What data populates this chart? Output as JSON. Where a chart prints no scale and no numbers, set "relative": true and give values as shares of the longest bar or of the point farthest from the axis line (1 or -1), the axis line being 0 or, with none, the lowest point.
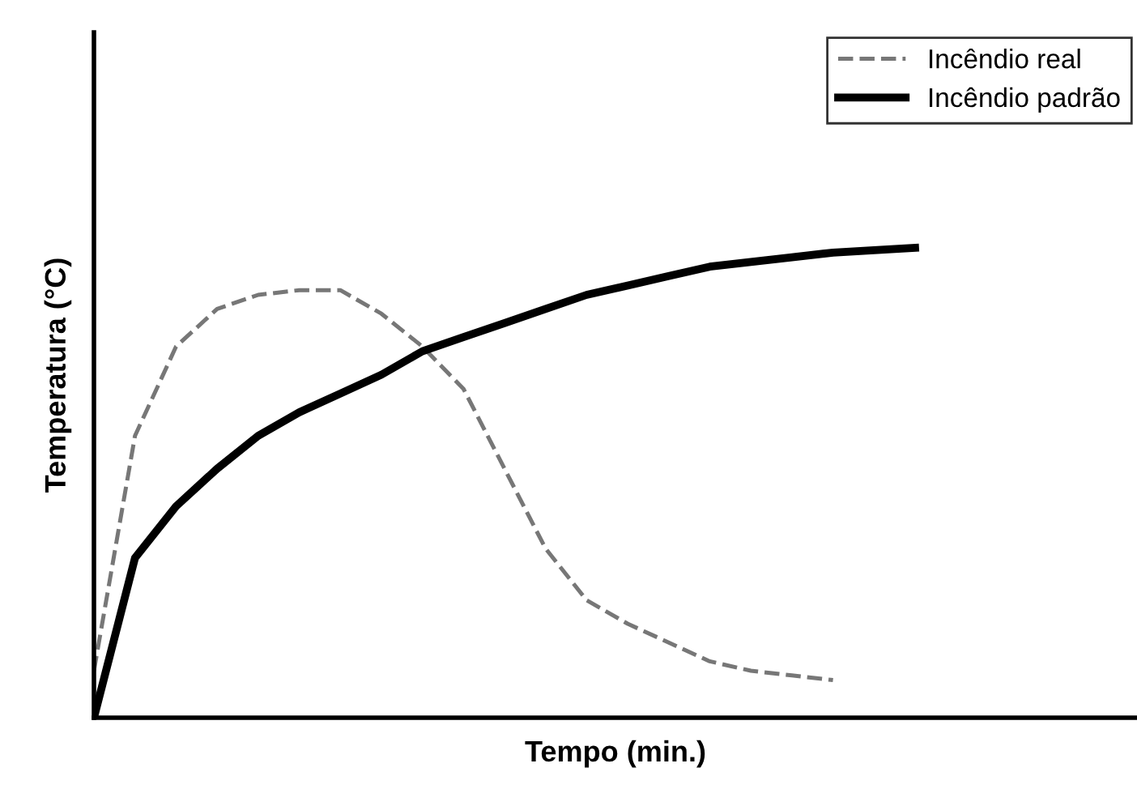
{
  "chart_data": {
    "type": "line",
    "relative": true,
    "xlabel": "Tempo (min.)",
    "ylabel": "Temperatura (°C)",
    "legend": "top right",
    "marker": "none",
    "categories": [
      null,
      null,
      null,
      null,
      null,
      null,
      null,
      null,
      null,
      null,
      null,
      null,
      null,
      null,
      null,
      null,
      null,
      null,
      null,
      null,
      null
    ],
    "series": [
      {
        "name": "Incêndio real",
        "color": "#777777",
        "line_style": "dashed",
        "values": [
          0.1,
          0.6,
          0.79,
          0.87,
          0.9,
          0.91,
          0.91,
          0.86,
          0.79,
          0.7,
          0.53,
          0.36,
          0.25,
          0.2,
          0.16,
          0.12,
          0.1,
          0.09,
          0.08,
          null,
          null
        ]
      },
      {
        "name": "Incêndio padrão",
        "color": "#000000",
        "line_style": "solid",
        "values": [
          0,
          0.34,
          0.45,
          0.53,
          0.6,
          0.65,
          0.69,
          0.73,
          0.78,
          0.81,
          0.84,
          0.87,
          0.9,
          0.92,
          0.94,
          0.96,
          0.97,
          0.98,
          0.99,
          0.995,
          1
        ]
      }
    ]
  }
}
